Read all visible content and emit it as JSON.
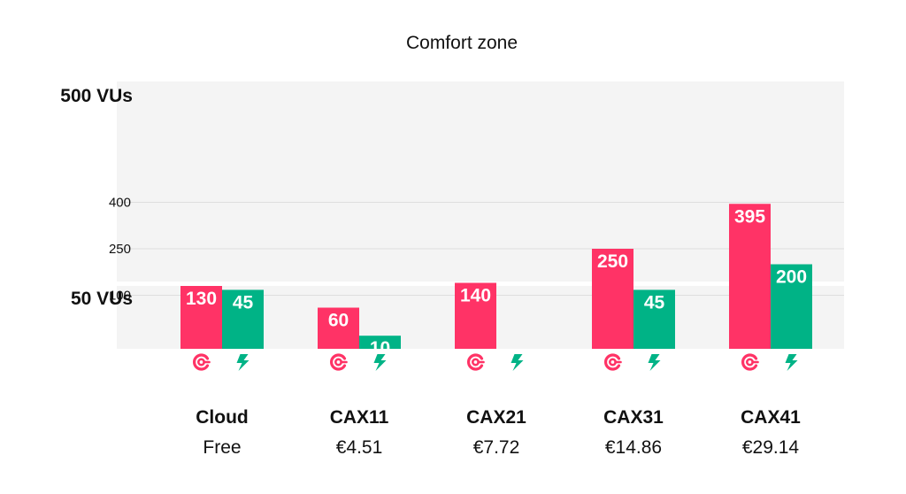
{
  "chart_data": {
    "type": "bar",
    "title": "Comfort zone",
    "categories": [
      "Cloud",
      "CAX11",
      "CAX21",
      "CAX31",
      "CAX41"
    ],
    "prices": [
      "Free",
      "€4.51",
      "€7.72",
      "€14.86",
      "€29.14"
    ],
    "series": [
      {
        "icon": "grafana-logo-icon",
        "color": "#ff3366",
        "values": [
          130,
          60,
          140,
          250,
          395
        ]
      },
      {
        "icon": "lightning-bolt-icon",
        "color": "#00b386",
        "values": [
          45,
          10,
          null,
          45,
          200
        ]
      }
    ],
    "y_ticks": [
      {
        "value": 100,
        "label": "100"
      },
      {
        "value": 250,
        "label": "250"
      },
      {
        "value": 400,
        "label": "400"
      }
    ],
    "zones": [
      {
        "value": 50,
        "label": "50 VUs"
      },
      {
        "value": 500,
        "label": "500 VUs"
      }
    ],
    "grid": true,
    "legend": "none"
  }
}
